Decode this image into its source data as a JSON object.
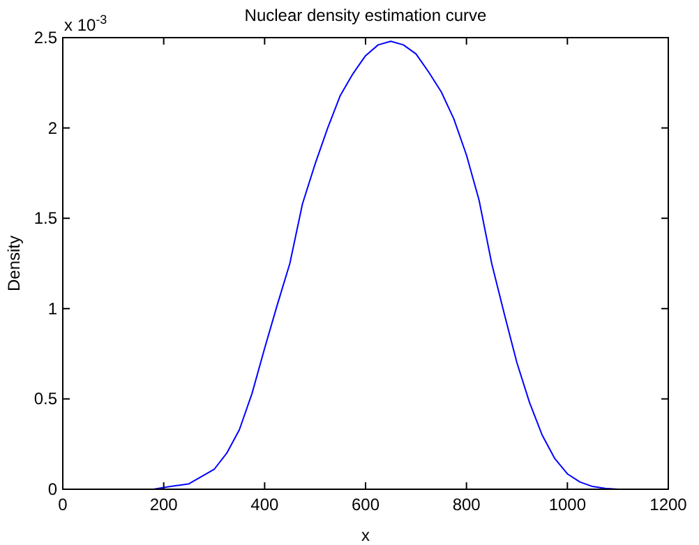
{
  "chart_data": {
    "type": "line",
    "title": "Nuclear density estimation curve",
    "xlabel": "x",
    "ylabel": "Density",
    "annotations": [
      "x 10$^{-3}$"
    ],
    "xlim": [
      0,
      1200
    ],
    "xticks": [
      0,
      200,
      400,
      600,
      800,
      1000,
      1200
    ],
    "ylim": [
      0,
      2.5
    ],
    "yticks": [
      0,
      0.5,
      1,
      1.5,
      2,
      2.5
    ],
    "grid": false,
    "marker": "none",
    "line_style": "solid",
    "series": [
      {
        "color": "#0000ff",
        "x": [
          180,
          200,
          250,
          300,
          325,
          350,
          375,
          400,
          425,
          450,
          475,
          500,
          525,
          550,
          575,
          600,
          625,
          650,
          675,
          700,
          725,
          750,
          775,
          800,
          825,
          850,
          875,
          900,
          925,
          950,
          975,
          1000,
          1025,
          1050,
          1075,
          1100
        ],
        "values": [
          0,
          0.01,
          0.03,
          0.11,
          0.2,
          0.33,
          0.53,
          0.78,
          1.02,
          1.25,
          1.58,
          1.8,
          2.0,
          2.18,
          2.3,
          2.4,
          2.46,
          2.48,
          2.46,
          2.41,
          2.31,
          2.2,
          2.05,
          1.85,
          1.6,
          1.25,
          0.97,
          0.7,
          0.48,
          0.3,
          0.17,
          0.085,
          0.04,
          0.015,
          0.005,
          0
        ]
      }
    ]
  }
}
